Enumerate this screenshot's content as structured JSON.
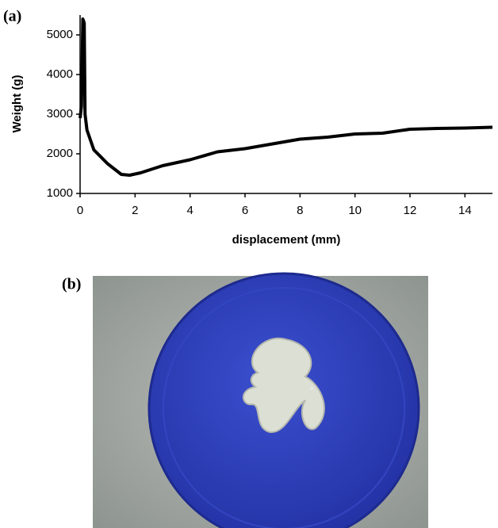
{
  "panel_labels": [
    "(a)",
    "(b)"
  ],
  "chart_data": {
    "type": "line",
    "x_label": "displacement (mm)",
    "y_label": "Weight (g)",
    "x": [
      0,
      0.05,
      0.1,
      0.15,
      0.18,
      0.25,
      0.5,
      1,
      1.5,
      1.8,
      2.2,
      3,
      4,
      5,
      6,
      7,
      8,
      9,
      10,
      11,
      12,
      13,
      14,
      15
    ],
    "series": [
      {
        "color": "#000000",
        "values": [
          2900,
          3200,
          5400,
          5300,
          3000,
          2600,
          2100,
          1750,
          1480,
          1460,
          1520,
          1700,
          1850,
          2050,
          2130,
          2250,
          2370,
          2420,
          2500,
          2520,
          2620,
          2640,
          2650,
          2670
        ]
      }
    ],
    "xlim": [
      0,
      15
    ],
    "xticks": [
      0,
      2,
      4,
      6,
      8,
      10,
      12,
      14
    ],
    "ylim": [
      1000,
      5500
    ],
    "yticks": [
      1000,
      2000,
      3000,
      4000,
      5000
    ],
    "grid": false
  }
}
